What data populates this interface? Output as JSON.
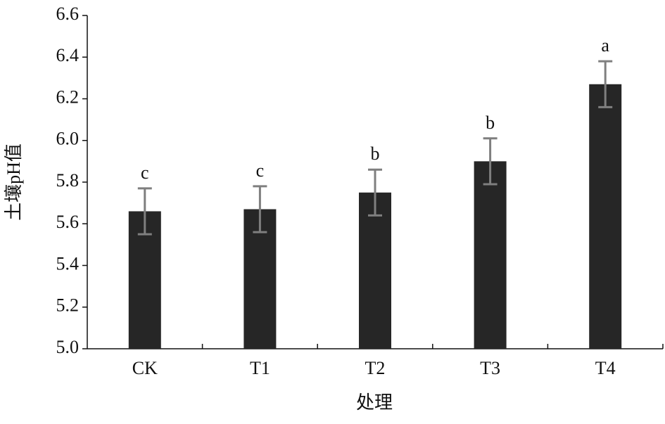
{
  "chart_data": {
    "type": "bar",
    "xlabel": "处理",
    "ylabel": "土壤pH值",
    "categories": [
      "CK",
      "T1",
      "T2",
      "T3",
      "T4"
    ],
    "values": [
      5.66,
      5.67,
      5.75,
      5.9,
      6.27
    ],
    "errors": [
      0.11,
      0.11,
      0.11,
      0.11,
      0.11
    ],
    "sig_labels": [
      "c",
      "c",
      "b",
      "b",
      "a"
    ],
    "color": "#262626",
    "error_color": "#7f7f7f",
    "ylim": [
      5.0,
      6.6
    ],
    "yticks": [
      {
        "value": 5.0,
        "label": "5.0"
      },
      5.2,
      5.4,
      5.6,
      5.8,
      {
        "value": 6.0,
        "label": "6.0"
      },
      6.2,
      6.4,
      6.6
    ]
  }
}
